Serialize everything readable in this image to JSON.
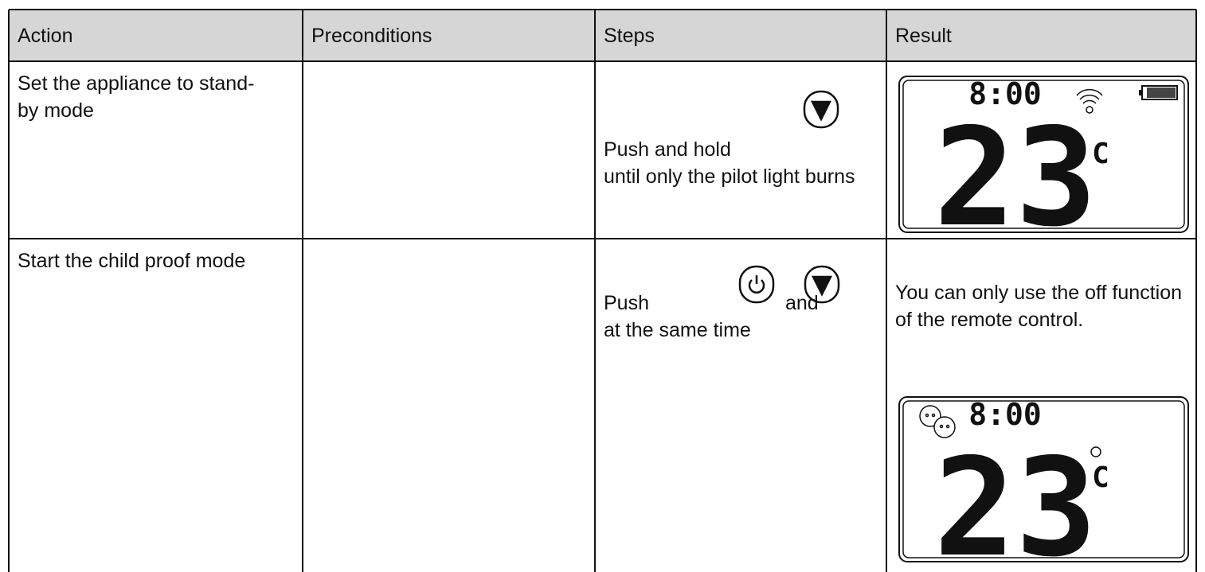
{
  "table": {
    "header": [
      "Action",
      "Preconditions",
      "Steps",
      "Result"
    ],
    "rows": [
      {
        "action": "Set the appliance to stand-by mode",
        "steps": [
          "Push and hold",
          "until only the pilot light burns"
        ],
        "result": {
          "lcd": {
            "time": "8:00",
            "temperature": "23",
            "unit": "C"
          }
        }
      },
      {
        "action": "Start the child proof mode",
        "steps": [
          "Push",
          "and",
          "at the same time"
        ],
        "result": {
          "text": "You can only use the off function of the remote control.",
          "lcd": {
            "time": "8:00",
            "temperature": "23",
            "unit": "C"
          }
        }
      }
    ]
  }
}
